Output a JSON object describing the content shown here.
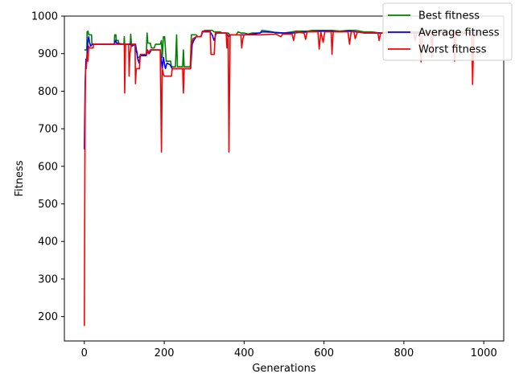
{
  "chart_data": {
    "type": "line",
    "title": "",
    "xlabel": "Generations",
    "ylabel": "Fitness",
    "xlim": [
      -50,
      1050
    ],
    "ylim": [
      135,
      1000
    ],
    "xticks": [
      0,
      200,
      400,
      600,
      800,
      1000
    ],
    "yticks": [
      200,
      300,
      400,
      500,
      600,
      700,
      800,
      900,
      1000
    ],
    "grid": false,
    "legend": {
      "placement": "top-right"
    },
    "series": [
      {
        "name": "Best fitness",
        "color": "#008000",
        "points": [
          [
            0,
            910
          ],
          [
            6,
            910
          ],
          [
            7,
            958
          ],
          [
            9,
            960
          ],
          [
            11,
            950
          ],
          [
            18,
            950
          ],
          [
            19,
            925
          ],
          [
            22,
            925
          ],
          [
            75,
            925
          ],
          [
            76,
            950
          ],
          [
            79,
            950
          ],
          [
            80,
            935
          ],
          [
            85,
            935
          ],
          [
            86,
            925
          ],
          [
            99,
            925
          ],
          [
            100,
            945
          ],
          [
            101,
            925
          ],
          [
            115,
            925
          ],
          [
            116,
            952
          ],
          [
            118,
            925
          ],
          [
            128,
            925
          ],
          [
            130,
            905
          ],
          [
            132,
            905
          ],
          [
            133,
            890
          ],
          [
            137,
            890
          ],
          [
            140,
            895
          ],
          [
            155,
            895
          ],
          [
            157,
            955
          ],
          [
            159,
            928
          ],
          [
            165,
            928
          ],
          [
            168,
            915
          ],
          [
            175,
            915
          ],
          [
            178,
            925
          ],
          [
            190,
            925
          ],
          [
            193,
            935
          ],
          [
            195,
            890
          ],
          [
            198,
            945
          ],
          [
            201,
            945
          ],
          [
            205,
            880
          ],
          [
            216,
            880
          ],
          [
            218,
            865
          ],
          [
            228,
            865
          ],
          [
            231,
            950
          ],
          [
            233,
            865
          ],
          [
            246,
            865
          ],
          [
            248,
            910
          ],
          [
            250,
            865
          ],
          [
            265,
            865
          ],
          [
            268,
            950
          ],
          [
            280,
            950
          ],
          [
            284,
            945
          ],
          [
            292,
            945
          ],
          [
            295,
            958
          ],
          [
            302,
            962
          ],
          [
            320,
            962
          ],
          [
            325,
            958
          ],
          [
            340,
            958
          ],
          [
            345,
            955
          ],
          [
            360,
            955
          ],
          [
            365,
            950
          ],
          [
            380,
            950
          ],
          [
            385,
            958
          ],
          [
            392,
            955
          ],
          [
            400,
            955
          ],
          [
            410,
            952
          ],
          [
            420,
            955
          ],
          [
            440,
            955
          ],
          [
            445,
            962
          ],
          [
            460,
            960
          ],
          [
            470,
            958
          ],
          [
            480,
            955
          ],
          [
            500,
            955
          ],
          [
            520,
            958
          ],
          [
            530,
            960
          ],
          [
            560,
            960
          ],
          [
            570,
            962
          ],
          [
            600,
            962
          ],
          [
            620,
            962
          ],
          [
            640,
            960
          ],
          [
            660,
            962
          ],
          [
            680,
            962
          ],
          [
            700,
            958
          ],
          [
            720,
            958
          ],
          [
            740,
            955
          ],
          [
            760,
            958
          ],
          [
            780,
            958
          ],
          [
            800,
            958
          ],
          [
            820,
            958
          ],
          [
            840,
            958
          ],
          [
            860,
            958
          ],
          [
            880,
            960
          ],
          [
            900,
            958
          ],
          [
            920,
            958
          ],
          [
            940,
            958
          ],
          [
            960,
            958
          ],
          [
            980,
            958
          ],
          [
            990,
            958
          ]
        ]
      },
      {
        "name": "Average fitness",
        "color": "#0000ff",
        "points": [
          [
            0,
            645
          ],
          [
            2,
            820
          ],
          [
            4,
            885
          ],
          [
            5,
            870
          ],
          [
            7,
            905
          ],
          [
            9,
            935
          ],
          [
            11,
            945
          ],
          [
            13,
            930
          ],
          [
            16,
            920
          ],
          [
            20,
            925
          ],
          [
            75,
            925
          ],
          [
            78,
            935
          ],
          [
            81,
            928
          ],
          [
            99,
            925
          ],
          [
            115,
            925
          ],
          [
            118,
            920
          ],
          [
            128,
            925
          ],
          [
            131,
            905
          ],
          [
            134,
            885
          ],
          [
            137,
            875
          ],
          [
            140,
            895
          ],
          [
            155,
            895
          ],
          [
            158,
            910
          ],
          [
            162,
            900
          ],
          [
            168,
            910
          ],
          [
            190,
            910
          ],
          [
            193,
            880
          ],
          [
            195,
            860
          ],
          [
            198,
            890
          ],
          [
            201,
            870
          ],
          [
            203,
            860
          ],
          [
            207,
            875
          ],
          [
            215,
            870
          ],
          [
            220,
            860
          ],
          [
            266,
            860
          ],
          [
            270,
            925
          ],
          [
            274,
            935
          ],
          [
            280,
            945
          ],
          [
            292,
            945
          ],
          [
            296,
            958
          ],
          [
            315,
            958
          ],
          [
            320,
            950
          ],
          [
            325,
            935
          ],
          [
            330,
            955
          ],
          [
            355,
            955
          ],
          [
            360,
            945
          ],
          [
            366,
            950
          ],
          [
            400,
            950
          ],
          [
            420,
            952
          ],
          [
            440,
            955
          ],
          [
            445,
            958
          ],
          [
            470,
            957
          ],
          [
            500,
            955
          ],
          [
            520,
            955
          ],
          [
            560,
            958
          ],
          [
            600,
            960
          ],
          [
            640,
            958
          ],
          [
            660,
            960
          ],
          [
            680,
            958
          ],
          [
            700,
            955
          ],
          [
            740,
            955
          ],
          [
            800,
            955
          ],
          [
            840,
            955
          ],
          [
            880,
            955
          ],
          [
            920,
            955
          ],
          [
            960,
            955
          ],
          [
            990,
            955
          ]
        ]
      },
      {
        "name": "Worst fitness",
        "color": "#ff0000",
        "points": [
          [
            0,
            175
          ],
          [
            1,
            500
          ],
          [
            2,
            750
          ],
          [
            3,
            860
          ],
          [
            5,
            860
          ],
          [
            7,
            900
          ],
          [
            9,
            880
          ],
          [
            11,
            920
          ],
          [
            13,
            915
          ],
          [
            22,
            915
          ],
          [
            23,
            925
          ],
          [
            98,
            925
          ],
          [
            100,
            925
          ],
          [
            101,
            795
          ],
          [
            103,
            925
          ],
          [
            111,
            925
          ],
          [
            112,
            840
          ],
          [
            114,
            900
          ],
          [
            118,
            925
          ],
          [
            127,
            925
          ],
          [
            128,
            820
          ],
          [
            130,
            860
          ],
          [
            138,
            860
          ],
          [
            140,
            898
          ],
          [
            155,
            898
          ],
          [
            157,
            910
          ],
          [
            160,
            900
          ],
          [
            165,
            910
          ],
          [
            190,
            910
          ],
          [
            193,
            638
          ],
          [
            195,
            860
          ],
          [
            198,
            845
          ],
          [
            200,
            840
          ],
          [
            218,
            840
          ],
          [
            220,
            860
          ],
          [
            246,
            860
          ],
          [
            248,
            795
          ],
          [
            250,
            860
          ],
          [
            266,
            860
          ],
          [
            268,
            925
          ],
          [
            272,
            940
          ],
          [
            280,
            945
          ],
          [
            292,
            945
          ],
          [
            296,
            960
          ],
          [
            315,
            960
          ],
          [
            317,
            898
          ],
          [
            325,
            898
          ],
          [
            328,
            955
          ],
          [
            355,
            955
          ],
          [
            357,
            915
          ],
          [
            360,
            950
          ],
          [
            362,
            638
          ],
          [
            365,
            950
          ],
          [
            392,
            950
          ],
          [
            394,
            915
          ],
          [
            397,
            940
          ],
          [
            400,
            950
          ],
          [
            410,
            950
          ],
          [
            440,
            950
          ],
          [
            480,
            952
          ],
          [
            492,
            945
          ],
          [
            496,
            952
          ],
          [
            520,
            952
          ],
          [
            524,
            935
          ],
          [
            528,
            958
          ],
          [
            550,
            955
          ],
          [
            554,
            938
          ],
          [
            558,
            958
          ],
          [
            585,
            958
          ],
          [
            588,
            912
          ],
          [
            592,
            958
          ],
          [
            598,
            930
          ],
          [
            602,
            958
          ],
          [
            618,
            958
          ],
          [
            620,
            898
          ],
          [
            623,
            958
          ],
          [
            660,
            958
          ],
          [
            664,
            925
          ],
          [
            668,
            958
          ],
          [
            675,
            958
          ],
          [
            678,
            940
          ],
          [
            684,
            958
          ],
          [
            700,
            955
          ],
          [
            735,
            955
          ],
          [
            738,
            935
          ],
          [
            742,
            955
          ],
          [
            800,
            955
          ],
          [
            825,
            955
          ],
          [
            828,
            935
          ],
          [
            832,
            955
          ],
          [
            840,
            955
          ],
          [
            843,
            878
          ],
          [
            846,
            955
          ],
          [
            868,
            955
          ],
          [
            870,
            890
          ],
          [
            873,
            955
          ],
          [
            925,
            955
          ],
          [
            927,
            880
          ],
          [
            930,
            955
          ],
          [
            970,
            955
          ],
          [
            972,
            818
          ],
          [
            975,
            950
          ],
          [
            990,
            950
          ]
        ]
      }
    ]
  }
}
